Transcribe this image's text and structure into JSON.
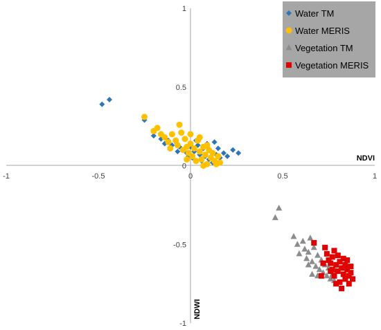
{
  "chart_data": {
    "type": "scatter",
    "xlabel": "NDVI",
    "ylabel": "NDWI",
    "xlim": [
      -1,
      1
    ],
    "ylim": [
      -1,
      1
    ],
    "x_ticks": [
      "-1",
      "-0.5",
      "0",
      "0.5",
      "1"
    ],
    "y_ticks": [
      "1",
      "0.5",
      "0",
      "-0.5",
      "-1"
    ],
    "grid": false,
    "legend": "top-right",
    "series": [
      {
        "name": "Water TM",
        "marker": "diamond",
        "color": "#2E75B6",
        "points": [
          [
            -0.48,
            0.39
          ],
          [
            -0.44,
            0.42
          ],
          [
            -0.25,
            0.29
          ],
          [
            -0.2,
            0.19
          ],
          [
            -0.16,
            0.17
          ],
          [
            -0.14,
            0.14
          ],
          [
            -0.12,
            0.16
          ],
          [
            -0.1,
            0.13
          ],
          [
            -0.08,
            0.15
          ],
          [
            -0.06,
            0.12
          ],
          [
            -0.04,
            0.1
          ],
          [
            -0.02,
            0.08
          ],
          [
            0.0,
            0.12
          ],
          [
            0.01,
            0.05
          ],
          [
            0.02,
            0.09
          ],
          [
            0.04,
            0.13
          ],
          [
            0.05,
            0.07
          ],
          [
            0.06,
            0.03
          ],
          [
            0.07,
            0.11
          ],
          [
            0.08,
            0.06
          ],
          [
            0.09,
            0.14
          ],
          [
            0.1,
            0.04
          ],
          [
            0.11,
            0.09
          ],
          [
            0.12,
            0.02
          ],
          [
            0.13,
            0.15
          ],
          [
            0.14,
            0.07
          ],
          [
            0.15,
            0.11
          ],
          [
            0.16,
            0.05
          ],
          [
            0.18,
            0.08
          ],
          [
            0.2,
            0.06
          ],
          [
            0.23,
            0.1
          ],
          [
            0.26,
            0.08
          ],
          [
            -0.07,
            0.09
          ],
          [
            0.03,
            0.16
          ],
          [
            -0.01,
            0.06
          ]
        ]
      },
      {
        "name": "Water MERIS",
        "marker": "circle",
        "color": "#FFC000",
        "points": [
          [
            -0.25,
            0.31
          ],
          [
            -0.2,
            0.22
          ],
          [
            -0.18,
            0.24
          ],
          [
            -0.16,
            0.2
          ],
          [
            -0.14,
            0.18
          ],
          [
            -0.12,
            0.15
          ],
          [
            -0.1,
            0.2
          ],
          [
            -0.08,
            0.16
          ],
          [
            -0.07,
            0.13
          ],
          [
            -0.06,
            0.26
          ],
          [
            -0.05,
            0.21
          ],
          [
            -0.04,
            0.1
          ],
          [
            -0.03,
            0.17
          ],
          [
            -0.02,
            0.12
          ],
          [
            -0.01,
            0.08
          ],
          [
            0.0,
            0.14
          ],
          [
            0.01,
            0.06
          ],
          [
            0.02,
            0.11
          ],
          [
            0.03,
            0.03
          ],
          [
            0.04,
            0.16
          ],
          [
            0.05,
            0.09
          ],
          [
            0.06,
            0.04
          ],
          [
            0.07,
            0.12
          ],
          [
            0.08,
            0.07
          ],
          [
            0.09,
            0.01
          ],
          [
            0.1,
            0.1
          ],
          [
            0.11,
            0.05
          ],
          [
            0.12,
            0.08
          ],
          [
            0.13,
            0.03
          ],
          [
            0.14,
            0.01
          ],
          [
            0.15,
            0.06
          ],
          [
            0.16,
            0.02
          ],
          [
            -0.11,
            0.11
          ],
          [
            0.0,
            0.2
          ],
          [
            0.05,
            0.18
          ],
          [
            0.09,
            0.13
          ],
          [
            -0.02,
            0.04
          ],
          [
            0.07,
            0.0
          ]
        ]
      },
      {
        "name": "Vegetation TM",
        "marker": "triangle",
        "color": "#8C8C8C",
        "points": [
          [
            0.46,
            -0.33
          ],
          [
            0.48,
            -0.27
          ],
          [
            0.56,
            -0.45
          ],
          [
            0.58,
            -0.5
          ],
          [
            0.59,
            -0.56
          ],
          [
            0.61,
            -0.48
          ],
          [
            0.62,
            -0.53
          ],
          [
            0.63,
            -0.59
          ],
          [
            0.64,
            -0.55
          ],
          [
            0.65,
            -0.46
          ],
          [
            0.66,
            -0.61
          ],
          [
            0.67,
            -0.52
          ],
          [
            0.68,
            -0.64
          ],
          [
            0.69,
            -0.57
          ],
          [
            0.7,
            -0.66
          ],
          [
            0.71,
            -0.6
          ],
          [
            0.72,
            -0.68
          ],
          [
            0.73,
            -0.63
          ],
          [
            0.74,
            -0.7
          ],
          [
            0.75,
            -0.65
          ],
          [
            0.76,
            -0.72
          ],
          [
            0.77,
            -0.69
          ],
          [
            0.78,
            -0.73
          ],
          [
            0.79,
            -0.67
          ],
          [
            0.66,
            -0.69
          ],
          [
            0.69,
            -0.7
          ],
          [
            0.64,
            -0.63
          ]
        ]
      },
      {
        "name": "Vegetation MERIS",
        "marker": "square",
        "color": "#E00000",
        "points": [
          [
            0.67,
            -0.49
          ],
          [
            0.73,
            -0.52
          ],
          [
            0.74,
            -0.56
          ],
          [
            0.75,
            -0.6
          ],
          [
            0.76,
            -0.62
          ],
          [
            0.77,
            -0.58
          ],
          [
            0.77,
            -0.66
          ],
          [
            0.78,
            -0.54
          ],
          [
            0.78,
            -0.7
          ],
          [
            0.79,
            -0.63
          ],
          [
            0.8,
            -0.57
          ],
          [
            0.8,
            -0.67
          ],
          [
            0.81,
            -0.61
          ],
          [
            0.81,
            -0.74
          ],
          [
            0.82,
            -0.65
          ],
          [
            0.82,
            -0.78
          ],
          [
            0.83,
            -0.59
          ],
          [
            0.83,
            -0.69
          ],
          [
            0.84,
            -0.63
          ],
          [
            0.84,
            -0.72
          ],
          [
            0.85,
            -0.66
          ],
          [
            0.85,
            -0.6
          ],
          [
            0.86,
            -0.7
          ],
          [
            0.86,
            -0.75
          ],
          [
            0.87,
            -0.64
          ],
          [
            0.87,
            -0.68
          ],
          [
            0.88,
            -0.72
          ],
          [
            0.79,
            -0.75
          ],
          [
            0.72,
            -0.62
          ],
          [
            0.71,
            -0.7
          ],
          [
            0.76,
            -0.67
          ]
        ]
      }
    ]
  }
}
